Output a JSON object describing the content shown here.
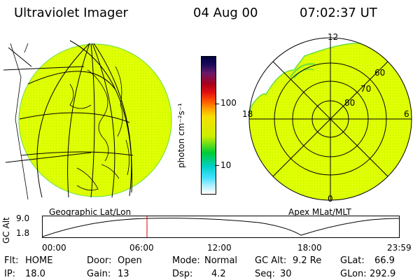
{
  "header": {
    "instrument": "Ultraviolet Imager",
    "date": "04 Aug 00",
    "time": "07:02:37 UT"
  },
  "colorbar": {
    "unit_label": "photon cm⁻²s⁻¹",
    "ticks": [
      "100",
      "10"
    ],
    "colors": [
      "#000040",
      "#1a0a5a",
      "#6a1a6a",
      "#a8001a",
      "#e01010",
      "#ff5000",
      "#ffa000",
      "#f5e000",
      "#ccee00",
      "#00cc33",
      "#00d0c8",
      "#40e0ff",
      "#aef0ff",
      "#ffffff"
    ]
  },
  "left_panel": {
    "caption": "Geographic Lat/Lon",
    "fill_color": "#ddff00"
  },
  "right_panel": {
    "caption": "Apex MLat/MLT",
    "mlt_labels": [
      "12",
      "6",
      "0",
      "18"
    ],
    "lat_labels": [
      "60",
      "70",
      "80"
    ],
    "fill_color": "#ddff00"
  },
  "altitude_plot": {
    "axis_label": "GC Alt",
    "y_ticks": [
      "9.0",
      "1.8"
    ],
    "x_ticks": [
      "00:00",
      "06:00",
      "12:00",
      "18:00",
      "23:59"
    ],
    "current_time_color": "#dd0000"
  },
  "status": {
    "filter_label": "Flt:",
    "filter_value": "HOME",
    "ip_label": "IP:",
    "ip_value": "18.0",
    "door_label": "Door:",
    "door_value": "Open",
    "gain_label": "Gain:",
    "gain_value": "13",
    "mode_label": "Mode:",
    "mode_value": "Normal",
    "dsp_label": "Dsp:",
    "dsp_value": "4.2",
    "gcalt_label": "GC Alt:",
    "gcalt_value": "9.2 Re",
    "seq_label": "Seq:",
    "seq_value": "30",
    "glat_label": "GLat:",
    "glat_value": "66.9",
    "glon_label": "GLon:",
    "glon_value": "292.9"
  }
}
